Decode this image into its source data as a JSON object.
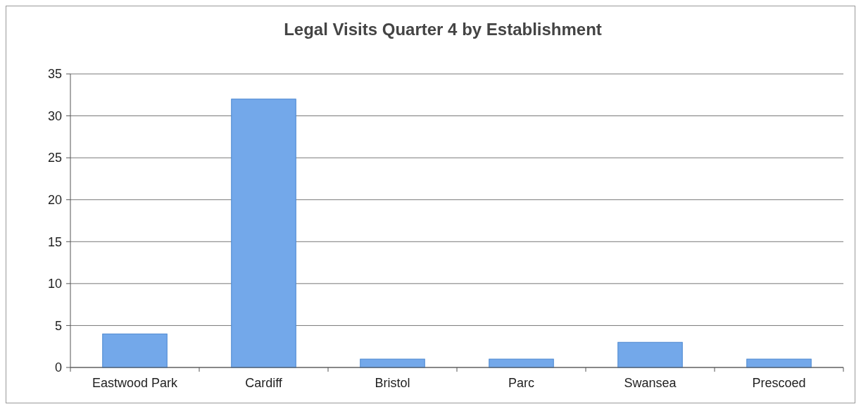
{
  "chart_data": {
    "type": "bar",
    "title": "Legal Visits Quarter 4 by Establishment",
    "categories": [
      "Eastwood Park",
      "Cardiff",
      "Bristol",
      "Parc",
      "Swansea",
      "Prescoed"
    ],
    "values": [
      4,
      32,
      1,
      1,
      3,
      1
    ],
    "color": "#73a8ea",
    "ylim": [
      0,
      35
    ],
    "yticks": [
      0,
      5,
      10,
      15,
      20,
      25,
      30,
      35
    ],
    "grid": "y"
  }
}
